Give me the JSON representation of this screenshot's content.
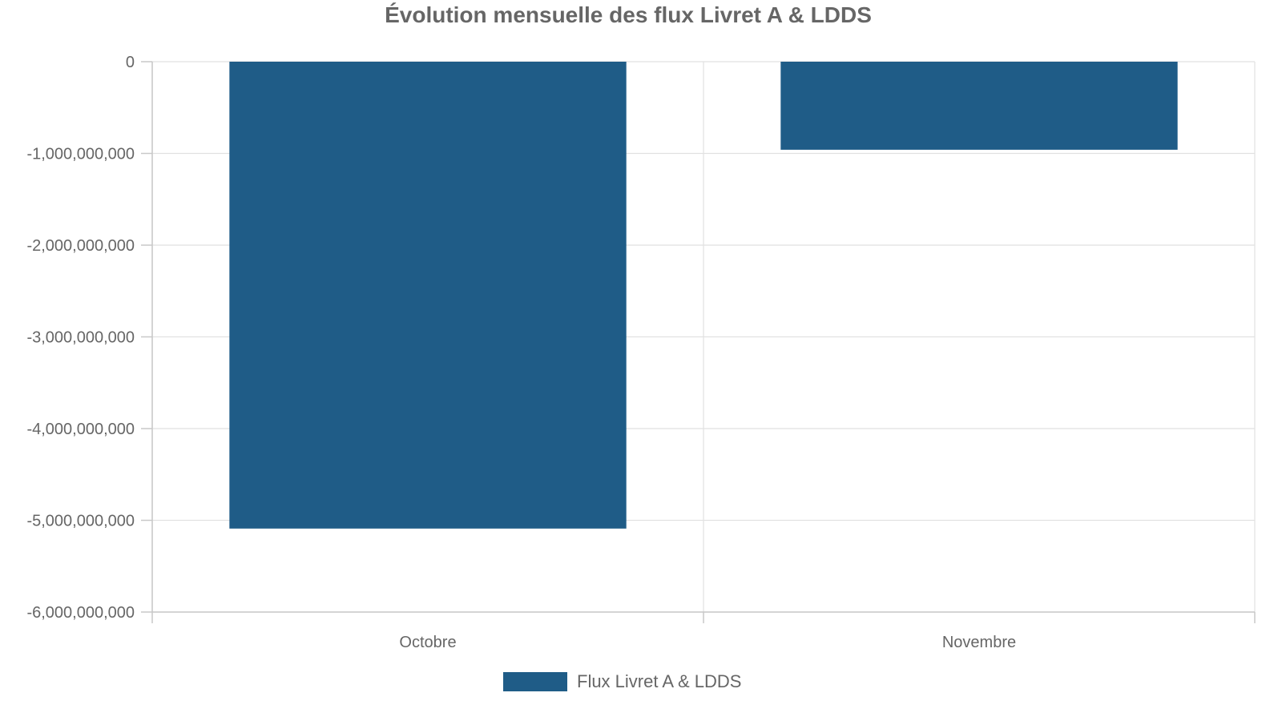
{
  "chart_data": {
    "type": "bar",
    "title": "Évolution mensuelle des flux Livret A & LDDS",
    "xlabel": "",
    "ylabel": "",
    "categories": [
      "Octobre",
      "Novembre"
    ],
    "series": [
      {
        "name": "Flux Livret A & LDDS",
        "values": [
          -5090000000,
          -960000000
        ],
        "color": "#1f5c87"
      }
    ],
    "ylim": [
      -6000000000,
      0
    ],
    "yticks": [
      0,
      -1000000000,
      -2000000000,
      -3000000000,
      -4000000000,
      -5000000000,
      -6000000000
    ],
    "ytick_labels": [
      "0",
      "-1,000,000,000",
      "-2,000,000,000",
      "-3,000,000,000",
      "-4,000,000,000",
      "-5,000,000,000",
      "-6,000,000,000"
    ],
    "grid": true,
    "legend_position": "bottom-center"
  }
}
